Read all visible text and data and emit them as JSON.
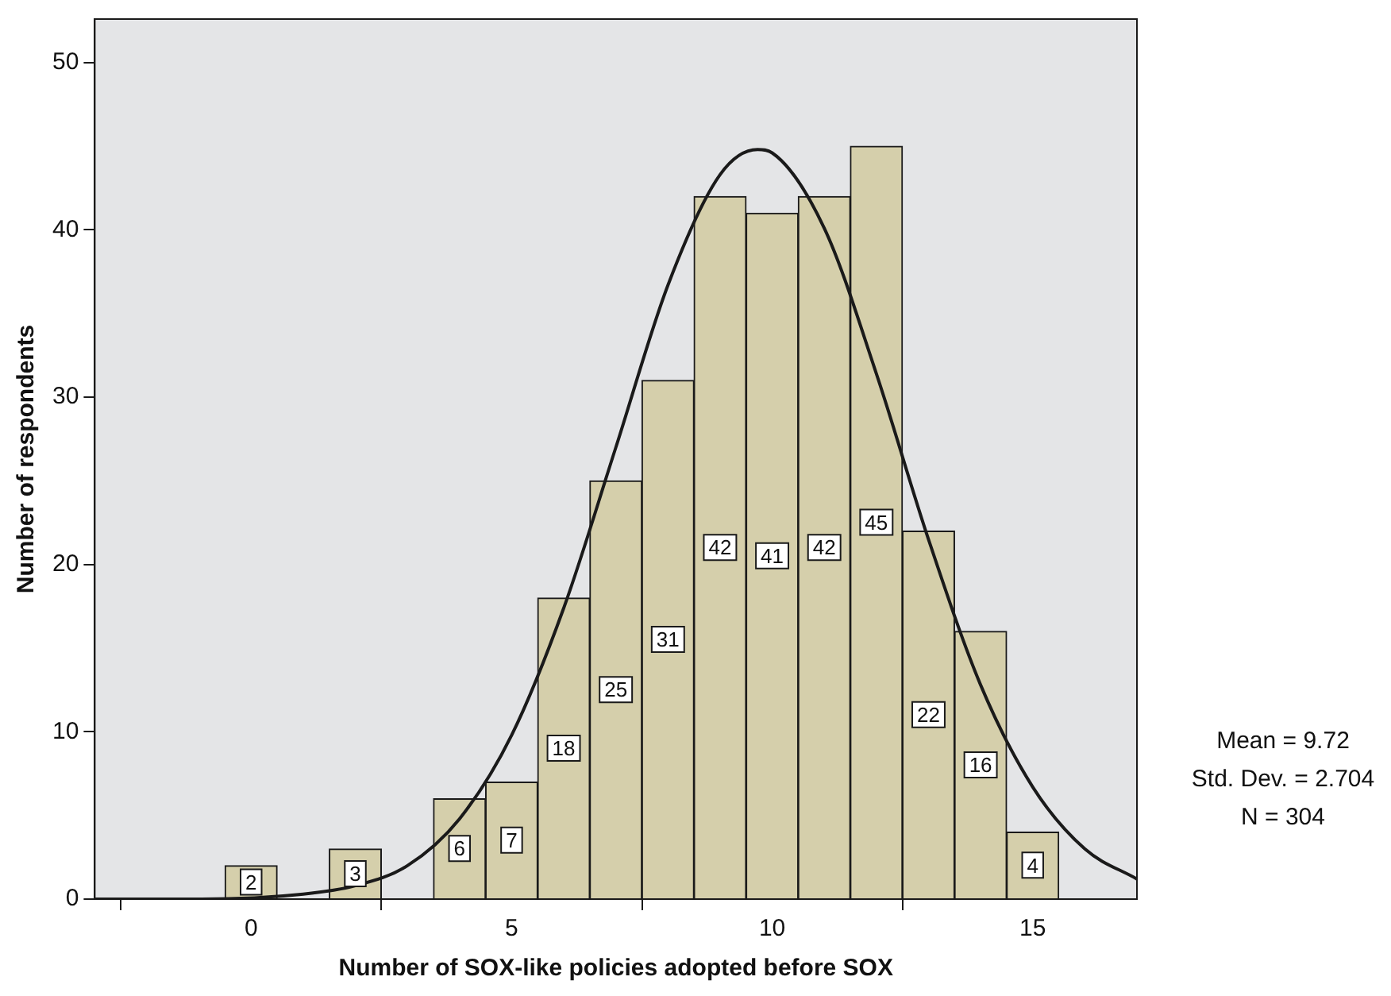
{
  "chart_data": {
    "type": "histogram",
    "xlabel": "Number of SOX-like policies adopted before SOX",
    "ylabel": "Number of respondents",
    "bins": [
      -0.5,
      0.5,
      1.5,
      2.5,
      3.5,
      4.5,
      5.5,
      6.5,
      7.5,
      8.5,
      9.5,
      10.5,
      11.5,
      12.5,
      13.5,
      14.5,
      15.5
    ],
    "values": [
      2,
      0,
      3,
      0,
      6,
      7,
      18,
      25,
      31,
      42,
      41,
      42,
      45,
      22,
      16,
      4
    ],
    "value_labels": [
      "2",
      null,
      "3",
      null,
      "6",
      "7",
      "18",
      "25",
      "31",
      "42",
      "41",
      "42",
      "45",
      "22",
      "16",
      "4"
    ],
    "color": "#d5cfab",
    "series": [
      {
        "type": "line",
        "color": "#1a1a1a",
        "x": [
          -3,
          -1,
          1,
          2,
          3,
          4,
          5,
          6,
          7,
          8,
          9,
          9.72,
          10,
          11,
          12,
          13,
          14,
          15,
          16,
          17
        ],
        "values": [
          0,
          0,
          0.3,
          0.8,
          2.0,
          4.8,
          9.8,
          17.4,
          27.0,
          36.7,
          43.3,
          44.8,
          44.6,
          40.1,
          31.4,
          21.5,
          12.8,
          6.7,
          3.0,
          1.2
        ]
      }
    ],
    "xlim": [
      -3,
      17
    ],
    "xticks": [
      0,
      5,
      10,
      15
    ],
    "ylim": [
      0,
      52.6
    ],
    "yticks": [
      0,
      10,
      20,
      30,
      40,
      50
    ],
    "grid": false,
    "annotations": [
      "Mean = 9.72",
      "Std. Dev. = 2.704",
      "N = 304"
    ]
  }
}
